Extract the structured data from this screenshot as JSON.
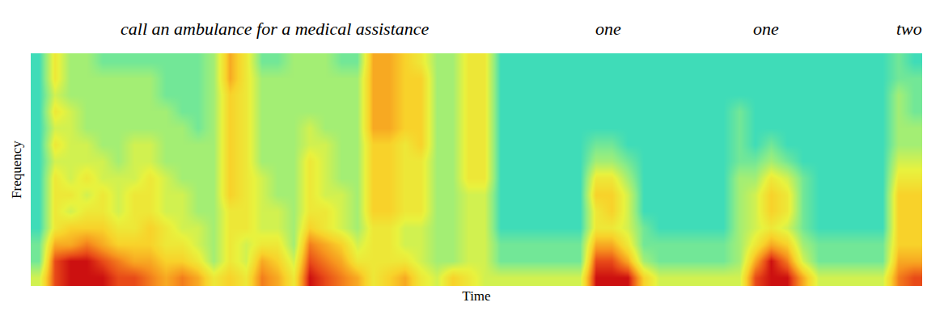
{
  "chart_data": {
    "type": "heatmap",
    "xlabel": "Time",
    "ylabel": "Frequency",
    "tick_labels": false,
    "xlim": [
      -0.5,
      55.5
    ],
    "ylim": [
      -0.5,
      13.5
    ],
    "zlim": [
      0,
      10
    ],
    "annotations": [
      {
        "text": "call an ambulance for a medical assistance",
        "x": 14.85
      },
      {
        "text": "one",
        "x": 35.8
      },
      {
        "text": "one",
        "x": 45.7
      },
      {
        "text": "two",
        "x": 54.7
      }
    ],
    "cells": [
      [
        4,
        2,
        2,
        1,
        1,
        1,
        1,
        1,
        1,
        1,
        1,
        1,
        1,
        1
      ],
      [
        9,
        9,
        7,
        5,
        5,
        5,
        5,
        4,
        5,
        4,
        5,
        4,
        5,
        5
      ],
      [
        10,
        10,
        7,
        6,
        4,
        5,
        4,
        4,
        4,
        4,
        4,
        3,
        3,
        3
      ],
      [
        10,
        10,
        8,
        6,
        5,
        4,
        5,
        4,
        4,
        3,
        3,
        3,
        3,
        3
      ],
      [
        10,
        9,
        7,
        6,
        5,
        5,
        4,
        4,
        3,
        3,
        3,
        3,
        3,
        2
      ],
      [
        9,
        8,
        6,
        5,
        4,
        4,
        4,
        3,
        3,
        3,
        3,
        3,
        3,
        2
      ],
      [
        9,
        7,
        6,
        5,
        5,
        5,
        4,
        4,
        4,
        3,
        3,
        3,
        3,
        2
      ],
      [
        8,
        7,
        6,
        6,
        5,
        5,
        5,
        4,
        4,
        3,
        3,
        3,
        3,
        2
      ],
      [
        7,
        6,
        5,
        5,
        4,
        4,
        4,
        3,
        3,
        3,
        3,
        2,
        2,
        2
      ],
      [
        8,
        6,
        5,
        4,
        4,
        4,
        3,
        3,
        3,
        3,
        2,
        2,
        2,
        2
      ],
      [
        7,
        5,
        4,
        4,
        3,
        3,
        3,
        3,
        3,
        2,
        2,
        2,
        2,
        2
      ],
      [
        5,
        3,
        3,
        3,
        3,
        3,
        3,
        3,
        3,
        3,
        3,
        3,
        3,
        3
      ],
      [
        6,
        5,
        5,
        5,
        5,
        6,
        6,
        6,
        6,
        6,
        6,
        6,
        7,
        7
      ],
      [
        5,
        4,
        4,
        5,
        5,
        5,
        5,
        5,
        5,
        5,
        5,
        5,
        5,
        5
      ],
      [
        8,
        7,
        5,
        4,
        4,
        4,
        4,
        3,
        3,
        3,
        3,
        3,
        3,
        2
      ],
      [
        7,
        6,
        5,
        4,
        4,
        3,
        3,
        3,
        3,
        3,
        3,
        3,
        3,
        2
      ],
      [
        5,
        4,
        3,
        3,
        3,
        3,
        3,
        3,
        3,
        3,
        3,
        3,
        3,
        3
      ],
      [
        10,
        9,
        8,
        6,
        5,
        5,
        5,
        5,
        4,
        4,
        3,
        3,
        3,
        3
      ],
      [
        9,
        8,
        7,
        5,
        5,
        4,
        4,
        4,
        4,
        3,
        3,
        3,
        3,
        3
      ],
      [
        8,
        7,
        6,
        4,
        4,
        4,
        3,
        3,
        3,
        3,
        3,
        3,
        3,
        2
      ],
      [
        7,
        5,
        4,
        3,
        3,
        3,
        3,
        3,
        3,
        3,
        3,
        3,
        3,
        2
      ],
      [
        5,
        5,
        5,
        5,
        6,
        6,
        6,
        6,
        6,
        7,
        7,
        7,
        7,
        7
      ],
      [
        6,
        5,
        5,
        5,
        6,
        6,
        6,
        6,
        6,
        7,
        7,
        7,
        7,
        7
      ],
      [
        7,
        5,
        4,
        4,
        5,
        5,
        5,
        5,
        5,
        6,
        6,
        6,
        6,
        6
      ],
      [
        5,
        4,
        4,
        4,
        5,
        5,
        5,
        5,
        6,
        6,
        6,
        6,
        6,
        5
      ],
      [
        4,
        3,
        3,
        3,
        3,
        3,
        3,
        3,
        3,
        3,
        3,
        3,
        3,
        3
      ],
      [
        6,
        3,
        3,
        3,
        3,
        3,
        3,
        3,
        3,
        3,
        3,
        3,
        3,
        3
      ],
      [
        5,
        4,
        4,
        4,
        4,
        4,
        5,
        5,
        5,
        5,
        5,
        5,
        5,
        5
      ],
      [
        4,
        4,
        4,
        4,
        4,
        4,
        5,
        5,
        5,
        5,
        5,
        5,
        5,
        5
      ],
      [
        4,
        2,
        2,
        1,
        1,
        1,
        1,
        1,
        1,
        1,
        1,
        1,
        1,
        1
      ],
      [
        4,
        2,
        2,
        1,
        1,
        1,
        1,
        1,
        1,
        1,
        1,
        1,
        1,
        1
      ],
      [
        4,
        2,
        2,
        1,
        1,
        1,
        1,
        1,
        1,
        1,
        1,
        1,
        1,
        1
      ],
      [
        4,
        2,
        2,
        1,
        1,
        1,
        1,
        1,
        1,
        1,
        1,
        1,
        1,
        1
      ],
      [
        4,
        2,
        2,
        1,
        1,
        1,
        1,
        1,
        1,
        1,
        1,
        1,
        1,
        1
      ],
      [
        4,
        2,
        2,
        1,
        1,
        1,
        1,
        1,
        1,
        1,
        1,
        1,
        1,
        1
      ],
      [
        10,
        9,
        7,
        5,
        5,
        6,
        5,
        3,
        2,
        1,
        1,
        1,
        1,
        1
      ],
      [
        10,
        9,
        7,
        5,
        6,
        6,
        5,
        3,
        2,
        1,
        1,
        1,
        1,
        1
      ],
      [
        10,
        7,
        5,
        4,
        4,
        4,
        3,
        2,
        1,
        1,
        1,
        1,
        1,
        1
      ],
      [
        6,
        3,
        2,
        2,
        1,
        1,
        1,
        1,
        1,
        1,
        1,
        1,
        1,
        1
      ],
      [
        4,
        2,
        2,
        1,
        1,
        1,
        1,
        1,
        1,
        1,
        1,
        1,
        1,
        1
      ],
      [
        4,
        2,
        2,
        1,
        1,
        1,
        1,
        1,
        1,
        1,
        1,
        1,
        1,
        1
      ],
      [
        4,
        2,
        2,
        1,
        1,
        1,
        1,
        1,
        1,
        1,
        1,
        1,
        1,
        1
      ],
      [
        4,
        2,
        2,
        1,
        1,
        1,
        1,
        1,
        1,
        1,
        1,
        1,
        1,
        1
      ],
      [
        4,
        2,
        2,
        1,
        1,
        1,
        1,
        1,
        1,
        1,
        1,
        1,
        1,
        1
      ],
      [
        4,
        3,
        3,
        3,
        3,
        3,
        3,
        2,
        2,
        2,
        2,
        1,
        1,
        1
      ],
      [
        9,
        7,
        5,
        4,
        4,
        4,
        3,
        2,
        1,
        1,
        1,
        1,
        1,
        1
      ],
      [
        10,
        10,
        7,
        5,
        6,
        6,
        5,
        3,
        2,
        1,
        1,
        1,
        1,
        1
      ],
      [
        10,
        8,
        6,
        4,
        5,
        5,
        4,
        2,
        1,
        1,
        1,
        1,
        1,
        1
      ],
      [
        7,
        4,
        3,
        2,
        2,
        2,
        2,
        1,
        1,
        1,
        1,
        1,
        1,
        1
      ],
      [
        4,
        2,
        2,
        1,
        1,
        1,
        1,
        1,
        1,
        1,
        1,
        1,
        1,
        1
      ],
      [
        4,
        2,
        2,
        1,
        1,
        1,
        1,
        1,
        1,
        1,
        1,
        1,
        1,
        1
      ],
      [
        4,
        2,
        2,
        1,
        1,
        1,
        1,
        1,
        1,
        1,
        1,
        1,
        1,
        1
      ],
      [
        4,
        2,
        2,
        1,
        1,
        1,
        1,
        1,
        1,
        1,
        1,
        1,
        1,
        1
      ],
      [
        4,
        2,
        2,
        1,
        1,
        1,
        1,
        1,
        1,
        1,
        1,
        1,
        1,
        1
      ],
      [
        8,
        7,
        6,
        6,
        6,
        6,
        5,
        4,
        3,
        3,
        3,
        3,
        2,
        2
      ],
      [
        9,
        7,
        6,
        6,
        6,
        6,
        5,
        4,
        3,
        3,
        2,
        2,
        2,
        1
      ]
    ]
  }
}
